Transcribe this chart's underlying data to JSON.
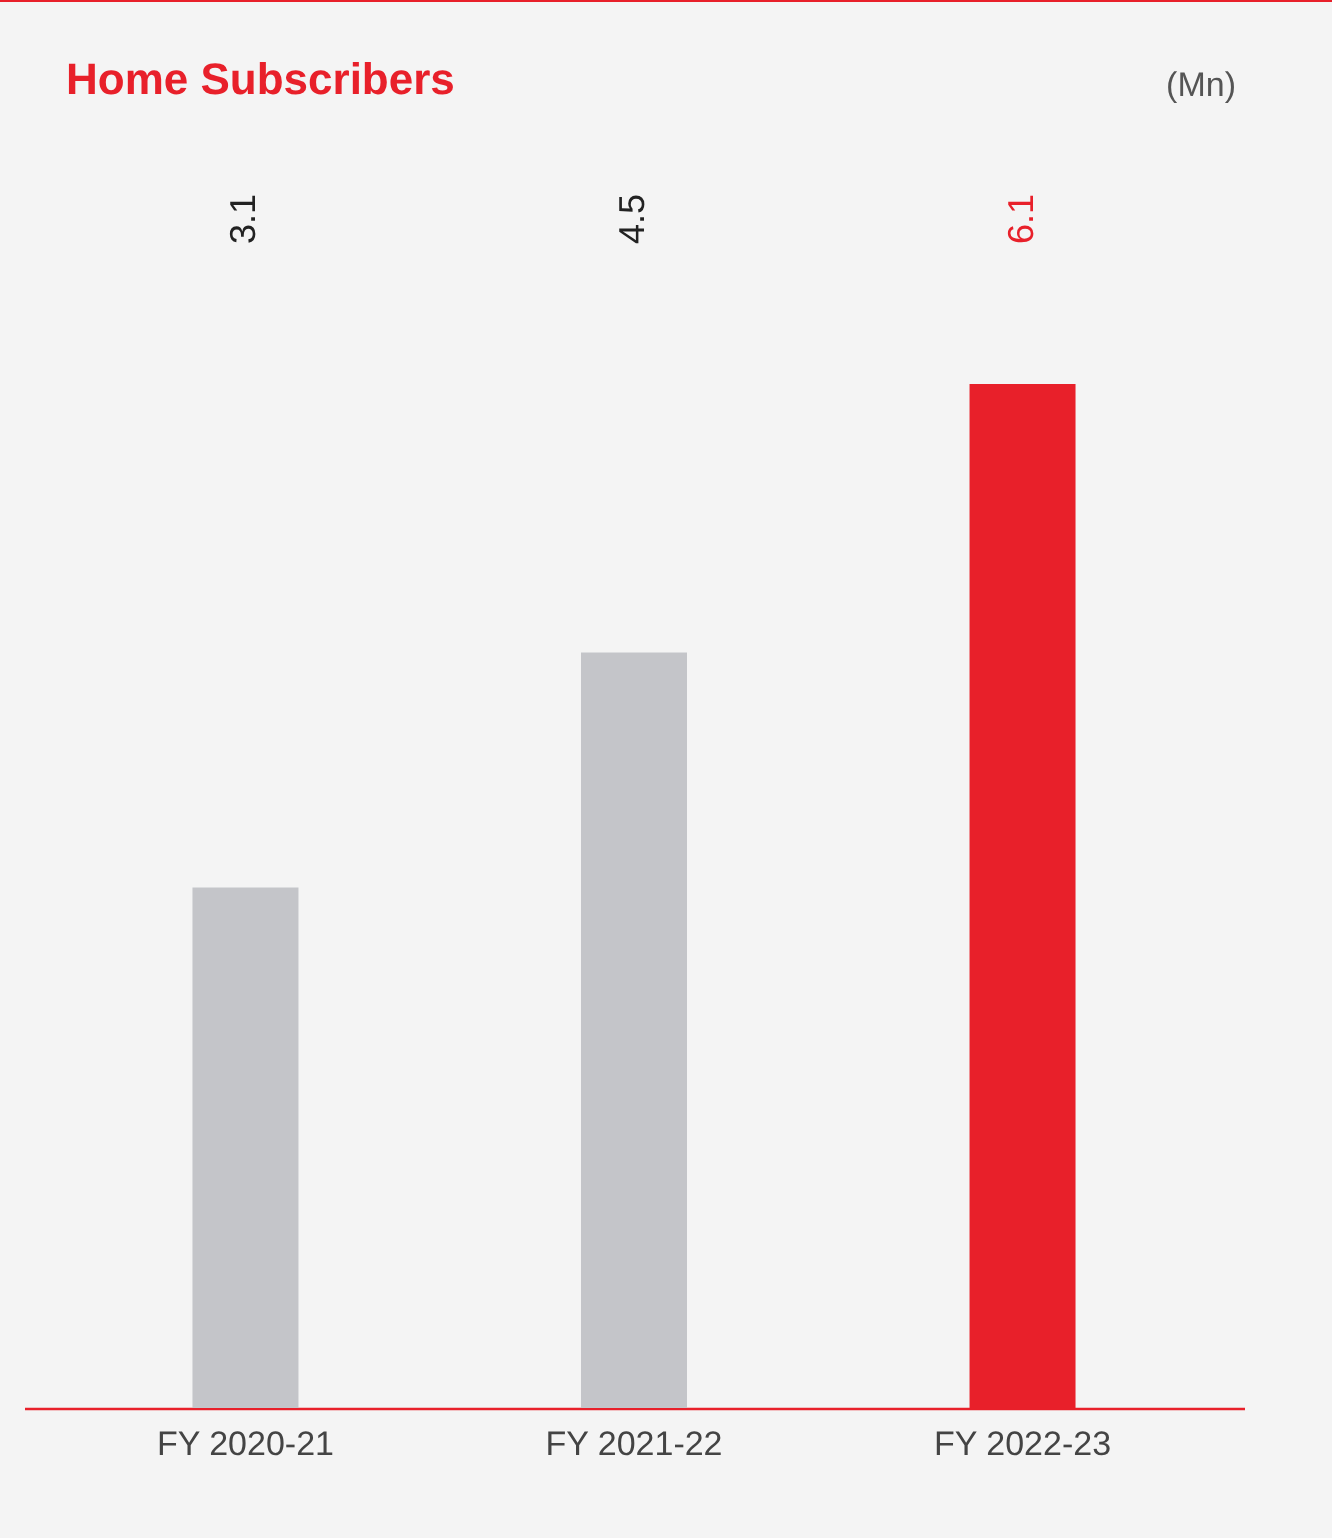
{
  "chart_data": {
    "type": "bar",
    "title": "Home Subscribers",
    "annotations": [
      "(Mn)"
    ],
    "categories": [
      "FY 2020-21",
      "FY 2021-22",
      "FY 2022-23"
    ],
    "values": [
      3.1,
      4.5,
      6.1
    ],
    "colors": [
      "#c4c5c9",
      "#c4c5c9",
      "#e8202a"
    ],
    "data_labels": true
  }
}
